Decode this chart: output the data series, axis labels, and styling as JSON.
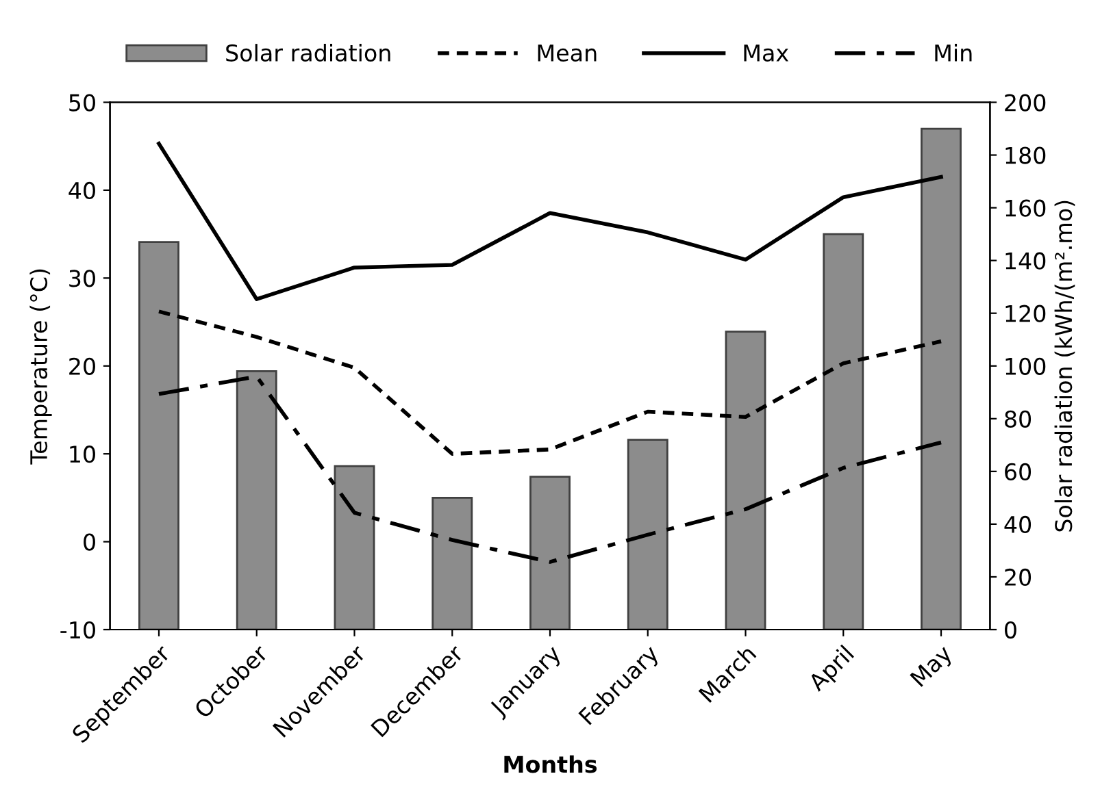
{
  "chart_data": {
    "type": "line",
    "xlabel": "Months",
    "ylabel": "Temperature (°C)",
    "y2label": "Solar radiation (kWh/(m².mo)",
    "categories": [
      "September",
      "October",
      "November",
      "December",
      "January",
      "February",
      "March",
      "April",
      "May"
    ],
    "series": [
      {
        "name": "Solar radiation",
        "type": "bar",
        "axis": "y2",
        "color": "#8c8c8c",
        "values": [
          147,
          98,
          62,
          50,
          58,
          72,
          113,
          150,
          190
        ]
      },
      {
        "name": "Mean",
        "color": "#000000",
        "line_style": "dashed",
        "values": [
          26.2,
          23.3,
          19.8,
          10,
          10.5,
          14.8,
          14.2,
          20.3,
          22.8
        ]
      },
      {
        "name": "Max",
        "color": "#000000",
        "line_style": "solid",
        "values": [
          45.3,
          27.6,
          31.2,
          31.5,
          37.4,
          35.2,
          32.1,
          39.2,
          41.5
        ]
      },
      {
        "name": "Min",
        "color": "#000000",
        "line_style": "dashdot",
        "values": [
          16.8,
          18.8,
          3.3,
          0.2,
          -2.3,
          0.8,
          3.7,
          8.4,
          11.3
        ]
      }
    ],
    "ylim": [
      -10,
      50
    ],
    "yticks": [
      -10,
      0,
      10,
      20,
      30,
      40,
      50
    ],
    "y2lim": [
      0,
      200
    ],
    "y2ticks": [
      0,
      20,
      40,
      60,
      80,
      100,
      120,
      140,
      160,
      180,
      200
    ],
    "legend": "top",
    "grid": false,
    "marker": "none"
  }
}
